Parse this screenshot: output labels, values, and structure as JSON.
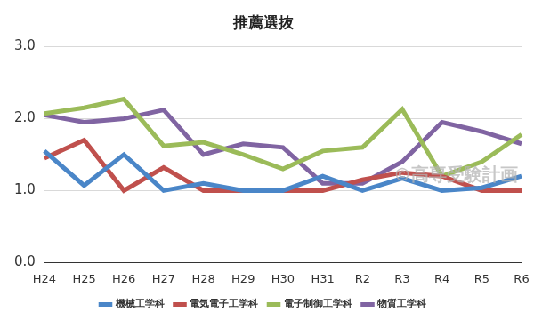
{
  "chart_data": {
    "type": "line",
    "title": "推薦選抜",
    "categories": [
      "H24",
      "H25",
      "H26",
      "H27",
      "H28",
      "H29",
      "H30",
      "H31",
      "R2",
      "R3",
      "R4",
      "R5",
      "R6"
    ],
    "series": [
      {
        "name": "機械工学科",
        "color": "#4a86c8",
        "values": [
          1.55,
          1.07,
          1.5,
          1.0,
          1.1,
          1.0,
          1.0,
          1.2,
          1.0,
          1.17,
          1.0,
          1.04,
          1.2
        ]
      },
      {
        "name": "電気電子工学科",
        "color": "#c0504d",
        "values": [
          1.45,
          1.7,
          1.0,
          1.32,
          1.0,
          1.0,
          1.0,
          1.0,
          1.15,
          1.25,
          1.2,
          1.0,
          1.0
        ]
      },
      {
        "name": "電子制御工学科",
        "color": "#9bbb59",
        "values": [
          2.07,
          2.15,
          2.27,
          1.62,
          1.67,
          1.5,
          1.3,
          1.55,
          1.6,
          2.13,
          1.2,
          1.4,
          1.78
        ]
      },
      {
        "name": "物質工学科",
        "color": "#8064a2",
        "values": [
          2.05,
          1.95,
          2.0,
          2.12,
          1.5,
          1.65,
          1.6,
          1.1,
          1.1,
          1.4,
          1.95,
          1.82,
          1.65
        ]
      }
    ],
    "ylim": [
      0,
      3
    ],
    "yticks": [
      {
        "value": 0,
        "label": "0.0"
      },
      {
        "value": 1,
        "label": "1.0"
      },
      {
        "value": 2,
        "label": "2.0"
      },
      {
        "value": 3,
        "label": "3.0"
      }
    ],
    "grid": true,
    "legend": "bottom",
    "annotations": [
      "©高専受験計画"
    ]
  }
}
